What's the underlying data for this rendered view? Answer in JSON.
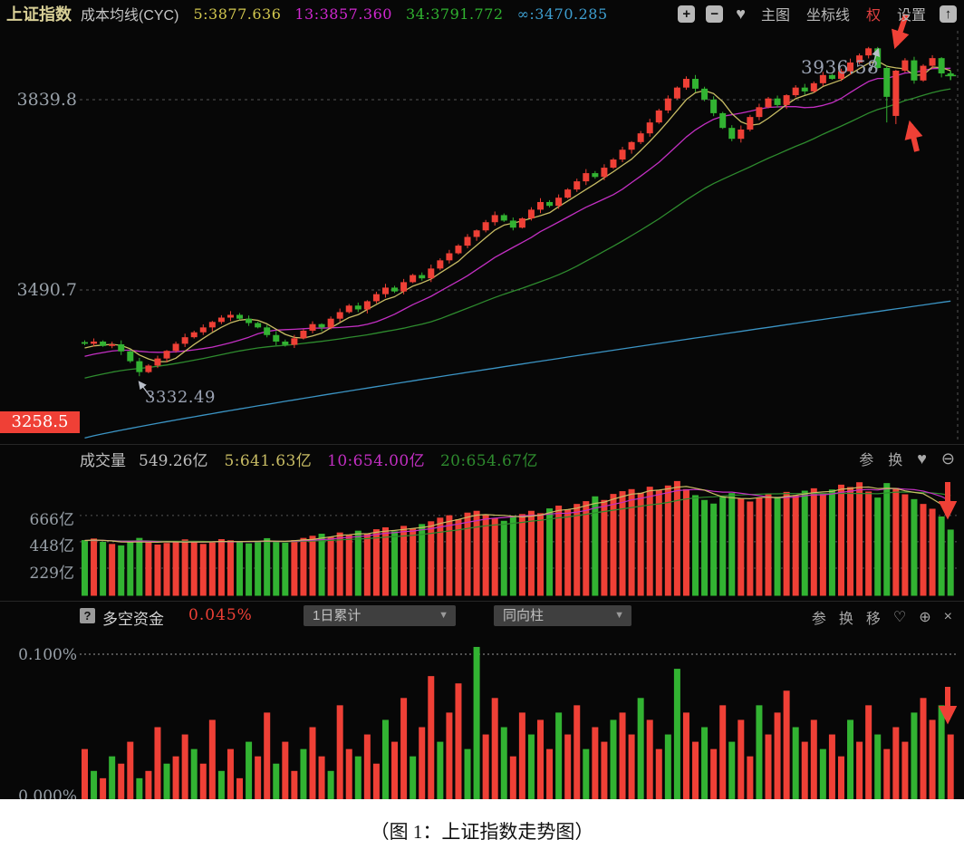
{
  "app": {
    "header": {
      "symbol": "上证指数",
      "study": "成本均线(CYC)",
      "line_values": [
        {
          "label": "5:3877.636",
          "color": "#d2c74f"
        },
        {
          "label": "13:3857.360",
          "color": "#d028d0"
        },
        {
          "label": "34:3791.772",
          "color": "#30b430"
        },
        {
          "label": "∞:3470.285",
          "color": "#3e9fd0"
        }
      ],
      "buttons": {
        "main_chart": "主图",
        "axis_lines": "坐标线",
        "rights": "权",
        "settings": "设置"
      }
    },
    "main_panel": {
      "y_ticks": [
        "3839.8",
        "3490.7"
      ],
      "last_badge": "3258.5",
      "annotation_high": "3936.58",
      "annotation_low": "3332.49"
    },
    "volume_panel": {
      "title": "成交量",
      "current": "549.26亿",
      "ma5": "5:641.63亿",
      "ma10": "10:654.00亿",
      "ma20": "20:654.67亿",
      "y_ticks": [
        "666亿",
        "448亿",
        "229亿"
      ],
      "toolbar": {
        "can": "参",
        "swap": "换"
      }
    },
    "indicator_panel": {
      "title": "多空资金",
      "value": "0.045%",
      "dropdown1": "1日累计",
      "dropdown2": "同向柱",
      "y_top": "0.100%",
      "y_bottom": "0.000%",
      "toolbar": {
        "can": "参",
        "swap": "换",
        "move": "移"
      }
    }
  },
  "icons": {
    "plus": "+",
    "minus": "−",
    "heart": "♥",
    "heart_outline": "♡",
    "upload": "↑",
    "zoom_in": "⊕",
    "zoom_out": "⊖",
    "close": "×",
    "help": "?",
    "caret": "▼"
  },
  "caption": "（图 1：上证指数走势图）",
  "colors": {
    "up": "#ef4036",
    "down": "#32b332",
    "ma5": "#c8bc64",
    "ma13": "#c22fc2",
    "ma34": "#2e8b2e",
    "inf": "#3b94c4",
    "grid": "#565656",
    "axis_label": "#98a0a8",
    "badge_bg": "#ef4036",
    "annotation": "#9aa2b2",
    "header_symbol": "#d8cf96",
    "rights_red": "#e04040"
  },
  "chart_data": [
    {
      "type": "candlestick",
      "symbol": "上证指数",
      "study": "成本均线(CYC)",
      "ma_values": {
        "5": 3877.636,
        "13": 3857.36,
        "34": 3791.772,
        "inf": 3470.285
      },
      "y_gridlines": [
        3839.8,
        3490.7
      ],
      "y_axis_badge": 3258.5,
      "annotated_high": 3936.58,
      "annotated_low": 3332.49,
      "ma_periods": [
        5,
        13,
        34
      ],
      "default_wick": 5,
      "inf_line": {
        "start": 3219,
        "end": 3470.285
      },
      "high_overrides": {
        "86": 3936.58
      },
      "low_overrides": {
        "6": 3332.49,
        "88": 3798,
        "89": 3795
      },
      "opens": [
        3395,
        3392,
        3396,
        3388,
        3391,
        3378,
        3360,
        3340,
        3352,
        3365,
        3379,
        3392,
        3404,
        3413,
        3422,
        3432,
        3440,
        3445,
        3438,
        3430,
        3422,
        3408,
        3396,
        3390,
        3402,
        3416,
        3428,
        3422,
        3438,
        3450,
        3462,
        3455,
        3470,
        3483,
        3495,
        3488,
        3505,
        3518,
        3512,
        3530,
        3545,
        3558,
        3572,
        3588,
        3600,
        3615,
        3628,
        3618,
        3605,
        3622,
        3638,
        3652,
        3645,
        3660,
        3675,
        3690,
        3705,
        3698,
        3715,
        3730,
        3748,
        3762,
        3778,
        3798,
        3820,
        3842,
        3862,
        3878,
        3860,
        3840,
        3815,
        3788,
        3768,
        3785,
        3808,
        3826,
        3842,
        3830,
        3848,
        3862,
        3855,
        3870,
        3885,
        3878,
        3892,
        3908,
        3921,
        3934,
        3898,
        3810,
        3893,
        3912,
        3875,
        3902,
        3916,
        3888
      ],
      "closes": [
        3392,
        3396,
        3388,
        3391,
        3378,
        3360,
        3340,
        3352,
        3365,
        3379,
        3392,
        3404,
        3413,
        3422,
        3432,
        3440,
        3445,
        3438,
        3430,
        3422,
        3408,
        3396,
        3390,
        3402,
        3416,
        3428,
        3422,
        3438,
        3450,
        3462,
        3455,
        3470,
        3483,
        3495,
        3488,
        3505,
        3518,
        3512,
        3530,
        3545,
        3558,
        3572,
        3588,
        3600,
        3615,
        3628,
        3618,
        3605,
        3622,
        3638,
        3652,
        3645,
        3660,
        3675,
        3690,
        3705,
        3698,
        3715,
        3730,
        3748,
        3762,
        3778,
        3798,
        3820,
        3842,
        3862,
        3878,
        3860,
        3840,
        3815,
        3788,
        3768,
        3785,
        3808,
        3826,
        3842,
        3830,
        3848,
        3862,
        3855,
        3870,
        3885,
        3878,
        3892,
        3908,
        3921,
        3934,
        3898,
        3845,
        3893,
        3912,
        3875,
        3902,
        3916,
        3888,
        3884
      ]
    },
    {
      "type": "bar",
      "name": "成交量",
      "unit": "亿",
      "current": 549.26,
      "ma": {
        "5": 641.63,
        "10": 654.0,
        "20": 654.67
      },
      "ma_periods": [
        5,
        10,
        20
      ],
      "y_gridlines": [
        666,
        448,
        229
      ],
      "values": [
        462,
        475,
        448,
        430,
        418,
        455,
        480,
        442,
        425,
        438,
        452,
        468,
        445,
        430,
        442,
        470,
        460,
        448,
        435,
        452,
        478,
        455,
        440,
        462,
        480,
        498,
        515,
        488,
        525,
        505,
        540,
        515,
        552,
        568,
        535,
        580,
        558,
        595,
        618,
        648,
        668,
        635,
        690,
        705,
        672,
        645,
        622,
        655,
        678,
        705,
        685,
        725,
        748,
        715,
        762,
        785,
        825,
        795,
        845,
        868,
        885,
        855,
        905,
        875,
        915,
        952,
        885,
        835,
        795,
        765,
        822,
        852,
        805,
        782,
        812,
        842,
        822,
        862,
        832,
        872,
        892,
        852,
        882,
        922,
        902,
        942,
        865,
        815,
        935,
        895,
        842,
        802,
        762,
        722,
        658,
        549.26
      ]
    },
    {
      "type": "bar",
      "name": "多空资金",
      "unit": "%",
      "current": 0.045,
      "mode": "1日累计",
      "style": "同向柱",
      "y_gridlines": [
        0.1,
        0.0
      ],
      "color_rule": "positive=red(bull) negative=green(bear)",
      "values": [
        0.035,
        -0.02,
        0.015,
        -0.03,
        0.025,
        0.04,
        -0.015,
        0.02,
        0.05,
        -0.025,
        0.03,
        0.045,
        -0.035,
        0.025,
        0.055,
        -0.02,
        0.035,
        0.015,
        -0.04,
        0.03,
        0.06,
        -0.025,
        0.04,
        0.02,
        -0.035,
        0.05,
        0.03,
        -0.02,
        0.065,
        0.035,
        -0.03,
        0.045,
        0.025,
        -0.055,
        0.04,
        0.07,
        -0.03,
        0.05,
        0.085,
        -0.04,
        0.06,
        0.08,
        -0.035,
        -0.105,
        0.045,
        0.07,
        -0.05,
        0.03,
        0.06,
        -0.045,
        0.055,
        0.035,
        -0.06,
        0.045,
        0.065,
        -0.035,
        0.05,
        0.04,
        -0.055,
        0.06,
        0.045,
        -0.07,
        0.055,
        0.035,
        -0.045,
        -0.09,
        0.06,
        0.04,
        -0.05,
        0.035,
        0.065,
        -0.04,
        0.055,
        0.03,
        -0.065,
        0.045,
        0.06,
        0.075,
        -0.05,
        0.04,
        0.055,
        -0.035,
        0.045,
        0.03,
        -0.055,
        0.04,
        0.065,
        -0.045,
        0.035,
        0.05,
        0.04,
        -0.06,
        0.07,
        0.055,
        -0.065,
        0.045
      ]
    }
  ]
}
